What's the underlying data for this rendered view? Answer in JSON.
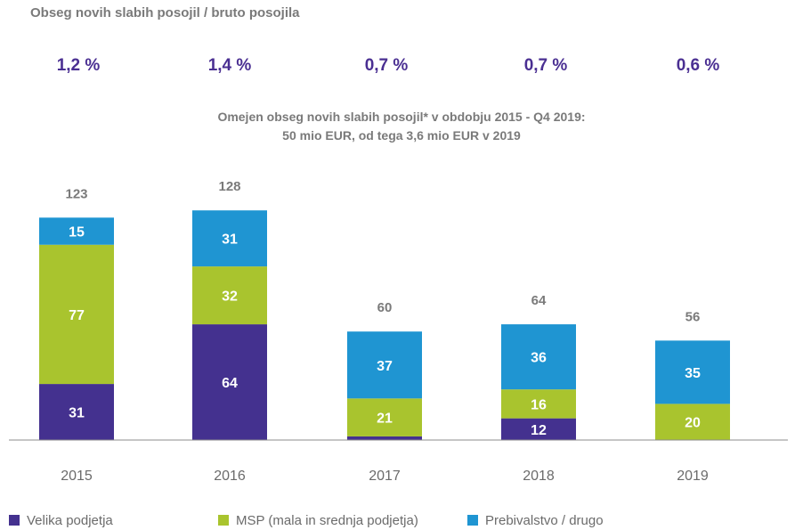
{
  "header": {
    "label": "Obseg novih slabih posojil / bruto posojila",
    "ratios": [
      "1,2 %",
      "1,4 %",
      "0,7 %",
      "0,7 %",
      "0,6 %"
    ]
  },
  "subtitle": {
    "line1": "Omejen obseg novih slabih posojil* v obdobju 2015 - Q4 2019:",
    "line2": "50 mio EUR, od tega 3,6 mio EUR v 2019"
  },
  "chart_data": {
    "type": "bar",
    "stacked": true,
    "categories": [
      "2015",
      "2016",
      "2017",
      "2018",
      "2019"
    ],
    "series": [
      {
        "name": "Velika podjetja",
        "color": "#44318f",
        "values": [
          31,
          64,
          2,
          12,
          0
        ]
      },
      {
        "name": "MSP (mala in srednja podjetja)",
        "color": "#a9c42e",
        "values": [
          77,
          32,
          21,
          16,
          20
        ]
      },
      {
        "name": "Prebivalstvo / drugo",
        "color": "#1f95d2",
        "values": [
          15,
          31,
          37,
          36,
          35
        ]
      }
    ],
    "totals": [
      123,
      128,
      60,
      64,
      56
    ],
    "grid": false,
    "legend_position": "bottom-left"
  }
}
